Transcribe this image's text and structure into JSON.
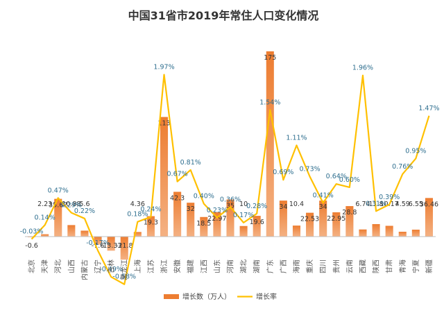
{
  "colors": {
    "bar_top": "#ed7d31",
    "bar_bottom": "#f4b183",
    "line": "#ffc000",
    "rate_label": "#2f6f8f",
    "baseline": "#bfbfbf"
  },
  "chart_data": {
    "type": "bar",
    "title": "中国31省市2019年常住人口变化情况",
    "xlabel": "",
    "ylabel": "",
    "categories": [
      "北京",
      "天津",
      "河北",
      "山西",
      "内蒙古",
      "辽宁",
      "吉林",
      "黑龙江",
      "上海",
      "江苏",
      "浙江",
      "安徽",
      "福建",
      "江西",
      "山东",
      "河南",
      "湖北",
      "湖南",
      "广东",
      "广西",
      "海南",
      "重庆",
      "四川",
      "贵州",
      "云南",
      "西藏",
      "陕西",
      "甘肃",
      "青海",
      "宁夏",
      "新疆"
    ],
    "series": [
      {
        "name": "增长数（万人）",
        "kind": "bar",
        "axis": "left",
        "values": [
          -0.6,
          2.23,
          35.67,
          10.88,
          5.6,
          -7.6,
          -13.33,
          -21.8,
          4.36,
          19.3,
          113,
          42.3,
          32,
          18.5,
          22.97,
          35,
          10,
          19.6,
          175,
          34,
          10.4,
          22.53,
          34,
          22.95,
          28.8,
          6.74,
          11.8,
          10.17,
          4.59,
          6.55,
          36.46
        ],
        "labels": [
          "-0.6",
          "2.23",
          "35.67",
          "10.88",
          "5.6",
          "-7.6",
          "-13.33",
          "-21.8",
          "4.36",
          "19.3",
          "113",
          "42.3",
          "32",
          "18.5",
          "22.97",
          "35",
          "10",
          "19.6",
          "175",
          "34",
          "10.4",
          "22.53",
          "34",
          "22.95",
          "28.8",
          "6.74",
          "11.8",
          "10.17",
          "4.59",
          "6.55",
          "36.46"
        ]
      },
      {
        "name": "增长率",
        "kind": "line",
        "axis": "right",
        "values": [
          -0.03,
          0.14,
          0.47,
          0.29,
          0.22,
          -0.17,
          -0.49,
          -0.58,
          0.18,
          0.24,
          1.97,
          0.67,
          0.81,
          0.4,
          0.23,
          0.36,
          0.17,
          0.28,
          1.54,
          0.69,
          1.11,
          0.73,
          0.41,
          0.64,
          0.6,
          1.96,
          0.31,
          0.39,
          0.76,
          0.95,
          1.47
        ],
        "labels": [
          "-0.03%",
          "0.14%",
          "0.47%",
          "0.29%",
          "0.22%",
          "-0.17%",
          "-0.49%",
          "-0.58%",
          "0.18%",
          "0.24%",
          "1.97%",
          "0.67%",
          "0.81%",
          "0.40%",
          "0.23%",
          "0.36%",
          "0.17%",
          "0.28%",
          "1.54%",
          "0.69%",
          "1.11%",
          "0.73%",
          "0.41%",
          "0.64%",
          "0.60%",
          "1.96%",
          "0.31%",
          "0.39%",
          "0.76%",
          "0.95%",
          "1.47%"
        ]
      }
    ],
    "ylim_left": [
      -25,
      175
    ],
    "ylim_right": [
      -0.6,
      2.0
    ],
    "grid": false,
    "legend_placement": "bottom"
  }
}
